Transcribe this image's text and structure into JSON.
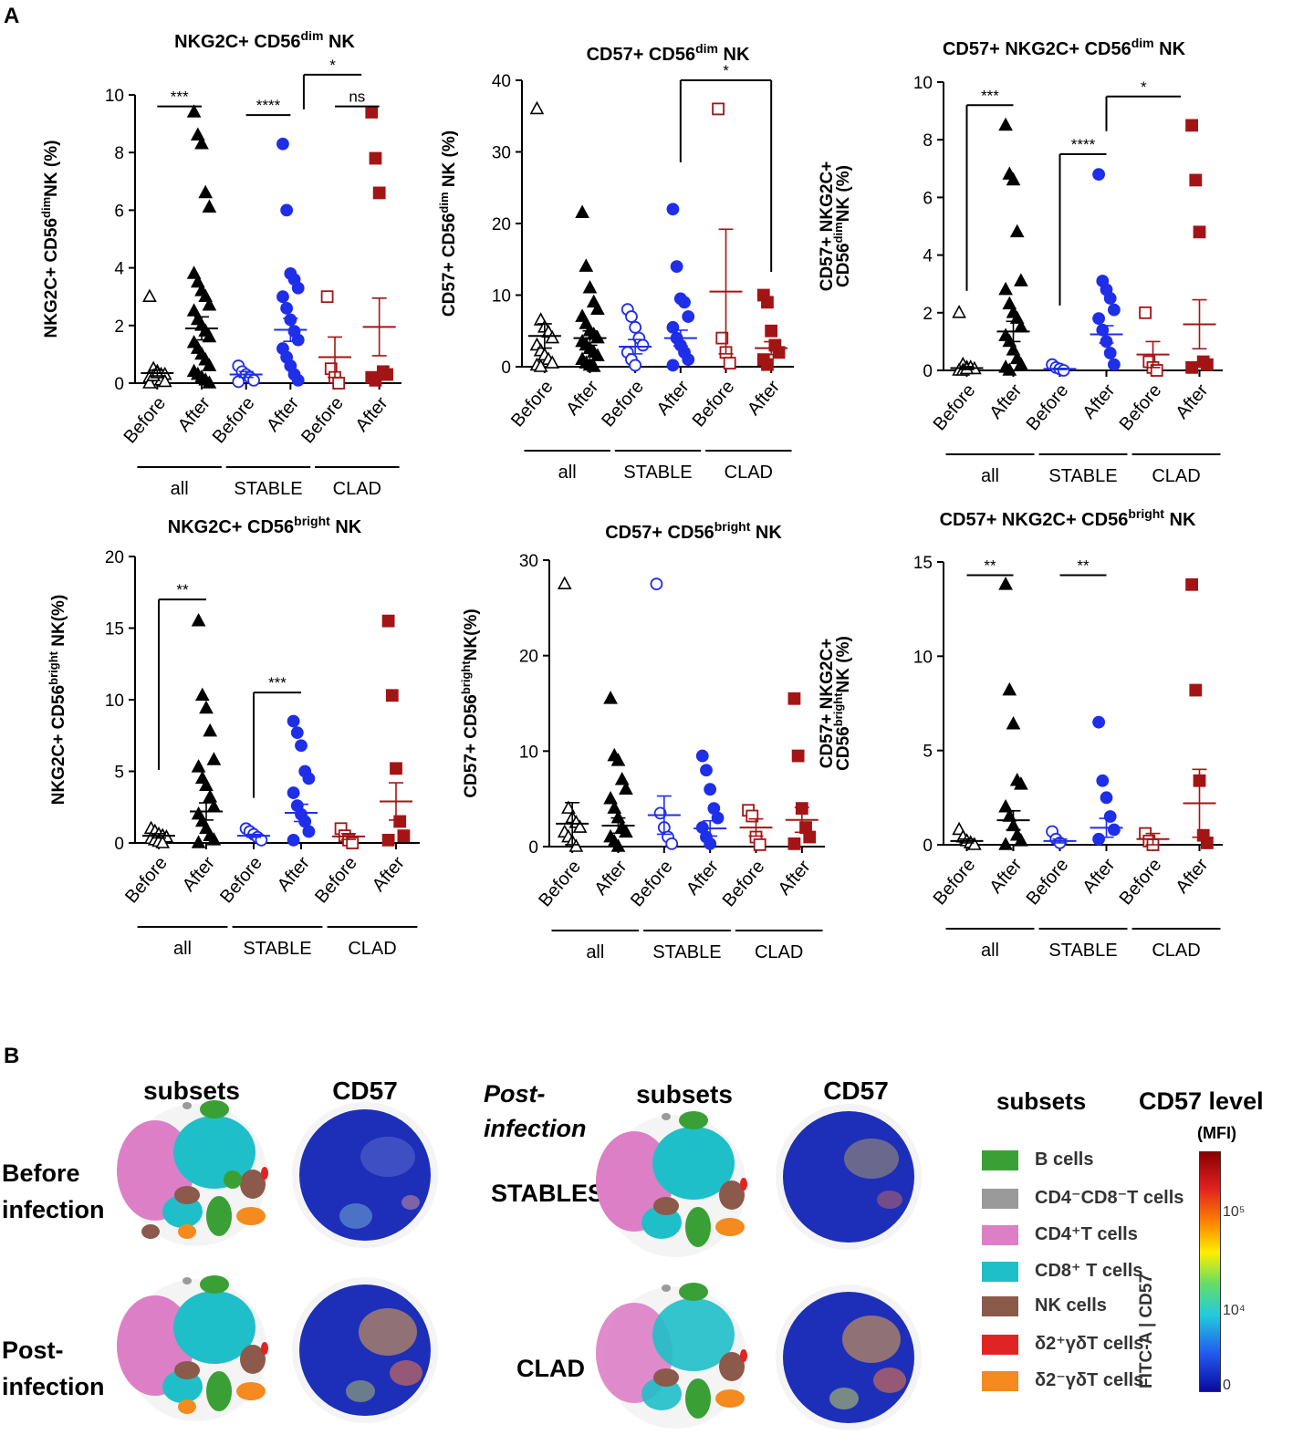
{
  "panel_a_label": "A",
  "panel_b_label": "B",
  "x_tick_labels": [
    "Before",
    "After",
    "Before",
    "After",
    "Before",
    "After"
  ],
  "groups": [
    "all",
    "STABLE",
    "CLAD"
  ],
  "colors": {
    "all": "#000000",
    "STABLE": "#1f2ee8",
    "CLAD": "#a31515"
  },
  "chart_data": [
    {
      "id": "c1",
      "type": "scatter",
      "title_main": "NKG2C+ CD56",
      "title_sup": "dim",
      "title_end": " NK",
      "ylabel_main": "NKG2C+ CD56",
      "ylabel_sup": "dim",
      "ylabel_end": "NK (%)",
      "ylim": [
        0,
        10
      ],
      "yticks": [
        0,
        2,
        4,
        6,
        8,
        10
      ],
      "series": [
        {
          "group": "all",
          "when": "Before",
          "mean": 0.35,
          "sem": 0.1,
          "points": [
            3.0,
            0.5,
            0.4,
            0.3,
            0.3,
            0.2,
            0.2,
            0.1,
            0.1,
            0.05,
            0,
            0.25,
            0.35
          ]
        },
        {
          "group": "all",
          "when": "After",
          "mean": 1.9,
          "sem": 0.4,
          "points": [
            9.4,
            8.6,
            8.3,
            6.6,
            6.1,
            3.8,
            3.5,
            3.2,
            3.0,
            2.7,
            2.5,
            2.2,
            2.0,
            1.8,
            1.6,
            1.4,
            1.2,
            1.0,
            0.8,
            0.6,
            0.4,
            0.3,
            0.2,
            0.1,
            0
          ]
        },
        {
          "group": "STABLE",
          "when": "Before",
          "mean": 0.3,
          "sem": 0.1,
          "points": [
            0.6,
            0.4,
            0.3,
            0.2,
            0.1,
            0.05
          ]
        },
        {
          "group": "STABLE",
          "when": "After",
          "mean": 1.85,
          "sem": 0.4,
          "points": [
            8.3,
            6.0,
            3.8,
            3.6,
            3.3,
            3.0,
            2.6,
            2.2,
            1.8,
            1.5,
            1.2,
            0.9,
            0.6,
            0.3,
            0.1
          ]
        },
        {
          "group": "CLAD",
          "when": "Before",
          "mean": 0.9,
          "sem": 0.7,
          "points": [
            3.0,
            0.5,
            0.2,
            0.0
          ]
        },
        {
          "group": "CLAD",
          "when": "After",
          "mean": 1.95,
          "sem": 1.0,
          "points": [
            9.4,
            7.8,
            6.6,
            0.4,
            0.3,
            0.2,
            0.1
          ]
        }
      ],
      "annotations": [
        "***",
        "****",
        "*",
        "ns"
      ]
    },
    {
      "id": "c2",
      "type": "scatter",
      "title_main": "CD57+ CD56",
      "title_sup": "dim",
      "title_end": " NK",
      "ylabel_main": "CD57+ CD56",
      "ylabel_sup": "dim",
      "ylabel_end": " NK (%)",
      "ylim": [
        0,
        40
      ],
      "yticks": [
        0,
        10,
        20,
        30,
        40
      ],
      "series": [
        {
          "group": "all",
          "when": "Before",
          "mean": 4.3,
          "sem": 1.7,
          "points": [
            36.0,
            6.5,
            5.5,
            4.8,
            4.0,
            3.0,
            2.2,
            1.6,
            1.0,
            0.5,
            0.2,
            0
          ]
        },
        {
          "group": "all",
          "when": "After",
          "mean": 4.0,
          "sem": 1.0,
          "points": [
            21.5,
            14.0,
            11.0,
            9.0,
            8.0,
            7.0,
            6.0,
            5.0,
            4.5,
            4.0,
            3.5,
            3.0,
            2.5,
            2.0,
            1.5,
            1.0,
            0.5,
            0.2,
            0
          ]
        },
        {
          "group": "STABLE",
          "when": "Before",
          "mean": 2.8,
          "sem": 1.0,
          "points": [
            8.0,
            7.0,
            5.5,
            4.0,
            3.0,
            2.0,
            1.0,
            0.2
          ]
        },
        {
          "group": "STABLE",
          "when": "After",
          "mean": 4.0,
          "sem": 1.1,
          "points": [
            22.0,
            14.0,
            9.5,
            9.0,
            7.0,
            5.5,
            4.0,
            3.0,
            2.0,
            1.0,
            0.2
          ]
        },
        {
          "group": "CLAD",
          "when": "Before",
          "mean": 10.5,
          "sem": 8.7,
          "points": [
            36.0,
            4.0,
            2.0,
            0.5
          ]
        },
        {
          "group": "CLAD",
          "when": "After",
          "mean": 2.6,
          "sem": 0.9,
          "points": [
            10.0,
            9.0,
            5.0,
            3.0,
            2.0,
            1.0,
            0.3
          ]
        }
      ],
      "annotations": [
        "*"
      ]
    },
    {
      "id": "c3",
      "type": "scatter",
      "title_main": "CD57+ NKG2C+ CD56",
      "title_sup": "dim",
      "title_end": " NK",
      "ylabel_line1": "CD57+ NKG2C+",
      "ylabel_main": "CD56",
      "ylabel_sup": "dim",
      "ylabel_end": "NK (%)",
      "ylim": [
        0,
        10
      ],
      "yticks": [
        0,
        2,
        4,
        6,
        8,
        10
      ],
      "series": [
        {
          "group": "all",
          "when": "Before",
          "mean": 0.08,
          "sem": 0.05,
          "points": [
            2.0,
            0.2,
            0.1,
            0.1,
            0.05,
            0,
            0,
            0.05
          ]
        },
        {
          "group": "all",
          "when": "After",
          "mean": 1.35,
          "sem": 0.35,
          "points": [
            8.5,
            6.8,
            6.6,
            4.8,
            3.1,
            2.8,
            2.3,
            2.0,
            1.8,
            1.5,
            1.2,
            1.0,
            0.7,
            0.4,
            0.2,
            0.1,
            0
          ]
        },
        {
          "group": "STABLE",
          "when": "Before",
          "mean": 0.05,
          "sem": 0.02,
          "points": [
            0.2,
            0.1,
            0.05,
            0
          ]
        },
        {
          "group": "STABLE",
          "when": "After",
          "mean": 1.25,
          "sem": 0.3,
          "points": [
            6.8,
            3.1,
            2.8,
            2.5,
            2.1,
            1.8,
            1.4,
            1.0,
            0.6,
            0.2
          ]
        },
        {
          "group": "CLAD",
          "when": "Before",
          "mean": 0.55,
          "sem": 0.45,
          "points": [
            2.0,
            0.3,
            0.1,
            0
          ]
        },
        {
          "group": "CLAD",
          "when": "After",
          "mean": 1.6,
          "sem": 0.85,
          "points": [
            8.5,
            6.6,
            4.8,
            0.3,
            0.2,
            0.1
          ]
        }
      ],
      "annotations": [
        "***",
        "****",
        "*"
      ]
    },
    {
      "id": "c4",
      "type": "scatter",
      "title_main": "NKG2C+ CD56",
      "title_sup": "bright",
      "title_end": " NK",
      "ylabel_main": "NKG2C+ CD56",
      "ylabel_sup": "bright",
      "ylabel_end": " NK(%)",
      "ylim": [
        0,
        20
      ],
      "yticks": [
        0,
        5,
        10,
        15,
        20
      ],
      "series": [
        {
          "group": "all",
          "when": "Before",
          "mean": 0.5,
          "sem": 0.15,
          "points": [
            1.0,
            0.8,
            0.6,
            0.5,
            0.4,
            0.3,
            0.2,
            0.1,
            0
          ]
        },
        {
          "group": "all",
          "when": "After",
          "mean": 2.2,
          "sem": 0.6,
          "points": [
            15.5,
            10.3,
            9.4,
            7.8,
            5.8,
            5.3,
            4.5,
            4.0,
            3.2,
            2.5,
            2.0,
            1.5,
            1.0,
            0.5,
            0.2,
            0
          ]
        },
        {
          "group": "STABLE",
          "when": "Before",
          "mean": 0.5,
          "sem": 0.1,
          "points": [
            1.0,
            0.8,
            0.6,
            0.4,
            0.2
          ]
        },
        {
          "group": "STABLE",
          "when": "After",
          "mean": 2.1,
          "sem": 0.6,
          "points": [
            8.5,
            7.7,
            6.8,
            5.0,
            4.5,
            3.5,
            2.6,
            2.0,
            1.5,
            0.8,
            0.2
          ]
        },
        {
          "group": "CLAD",
          "when": "Before",
          "mean": 0.45,
          "sem": 0.2,
          "points": [
            1.0,
            0.5,
            0.2,
            0
          ]
        },
        {
          "group": "CLAD",
          "when": "After",
          "mean": 2.9,
          "sem": 1.3,
          "points": [
            15.5,
            10.3,
            5.2,
            1.5,
            0.5,
            0.2
          ]
        }
      ],
      "annotations": [
        "**",
        "***"
      ]
    },
    {
      "id": "c5",
      "type": "scatter",
      "title_main": "CD57+ CD56",
      "title_sup": "bright",
      "title_end": " NK",
      "ylabel_main": "CD57+ CD56",
      "ylabel_sup": "bright",
      "ylabel_end": "NK(%)",
      "ylim": [
        0,
        30
      ],
      "yticks": [
        0,
        10,
        20,
        30
      ],
      "series": [
        {
          "group": "all",
          "when": "Before",
          "mean": 2.4,
          "sem": 2.2,
          "points": [
            27.5,
            4.0,
            3.0,
            2.5,
            2.0,
            1.5,
            1.0,
            0.5,
            0
          ]
        },
        {
          "group": "all",
          "when": "After",
          "mean": 2.2,
          "sem": 0.8,
          "points": [
            15.5,
            9.5,
            9.0,
            7.0,
            6.0,
            5.0,
            4.0,
            3.0,
            2.0,
            1.5,
            1.0,
            0.5,
            0
          ]
        },
        {
          "group": "STABLE",
          "when": "Before",
          "mean": 3.3,
          "sem": 2.0,
          "points": [
            27.5,
            3.5,
            2.0,
            1.0,
            0.3
          ]
        },
        {
          "group": "STABLE",
          "when": "After",
          "mean": 1.9,
          "sem": 0.8,
          "points": [
            9.5,
            8.0,
            6.0,
            4.0,
            3.0,
            2.0,
            1.0,
            0.3
          ]
        },
        {
          "group": "CLAD",
          "when": "Before",
          "mean": 2.0,
          "sem": 0.9,
          "points": [
            3.8,
            3.2,
            1.0,
            0.2
          ]
        },
        {
          "group": "CLAD",
          "when": "After",
          "mean": 2.8,
          "sem": 1.3,
          "points": [
            15.5,
            9.5,
            4.0,
            2.0,
            1.0,
            0.3
          ]
        }
      ],
      "annotations": []
    },
    {
      "id": "c6",
      "type": "scatter",
      "title_main": "CD57+ NKG2C+ CD56",
      "title_sup": "bright",
      "title_end": " NK",
      "ylabel_line1": "CD57+ NKG2C+",
      "ylabel_main": "CD56",
      "ylabel_sup": "bright",
      "ylabel_end": "NK (%)",
      "ylim": [
        0,
        15
      ],
      "yticks": [
        0,
        5,
        10,
        15
      ],
      "series": [
        {
          "group": "all",
          "when": "Before",
          "mean": 0.2,
          "sem": 0.1,
          "points": [
            0.8,
            0.4,
            0.2,
            0.1,
            0
          ]
        },
        {
          "group": "all",
          "when": "After",
          "mean": 1.3,
          "sem": 0.5,
          "points": [
            13.8,
            8.2,
            6.4,
            3.4,
            3.2,
            2.0,
            1.5,
            1.0,
            0.5,
            0.2,
            0
          ]
        },
        {
          "group": "STABLE",
          "when": "Before",
          "mean": 0.2,
          "sem": 0.1,
          "points": [
            0.7,
            0.3,
            0.1
          ]
        },
        {
          "group": "STABLE",
          "when": "After",
          "mean": 0.9,
          "sem": 0.5,
          "points": [
            6.5,
            3.4,
            2.5,
            1.5,
            0.8,
            0.3
          ]
        },
        {
          "group": "CLAD",
          "when": "Before",
          "mean": 0.3,
          "sem": 0.3,
          "points": [
            0.6,
            0.2,
            0
          ]
        },
        {
          "group": "CLAD",
          "when": "After",
          "mean": 2.2,
          "sem": 1.8,
          "points": [
            13.8,
            8.2,
            3.4,
            0.5,
            0.1
          ]
        }
      ],
      "annotations": [
        "**",
        "**"
      ]
    }
  ],
  "panel_b": {
    "col_subsets": "subsets",
    "col_cd57": "CD57",
    "post_line1": "Post-",
    "post_line2": "infection",
    "row_before_1": "Before",
    "row_before_2": "infection",
    "row_post_1": "Post-",
    "row_post_2": "infection",
    "row_stables": "STABLES",
    "row_clad": "CLAD",
    "legend_title": "subsets",
    "legend": [
      {
        "label": "B cells",
        "color": "#3aa035"
      },
      {
        "label": "CD4⁻CD8⁻T cells",
        "color": "#9a9a9a"
      },
      {
        "label": "CD4⁺T cells",
        "color": "#dd7fc6"
      },
      {
        "label": "CD8⁺ T cells",
        "color": "#1fbfc9"
      },
      {
        "label": "NK cells",
        "color": "#8b5a4a"
      },
      {
        "label": "δ2⁺γδT cells",
        "color": "#e02424"
      },
      {
        "label": "δ2⁻γδT cells",
        "color": "#f58a1f"
      }
    ],
    "cbar_title": "CD57 level",
    "cbar_sub": "(MFI)",
    "cbar_axis": "FITC-A | CD57",
    "cbar_ticks": [
      "10⁵",
      "10⁴",
      "0"
    ]
  }
}
